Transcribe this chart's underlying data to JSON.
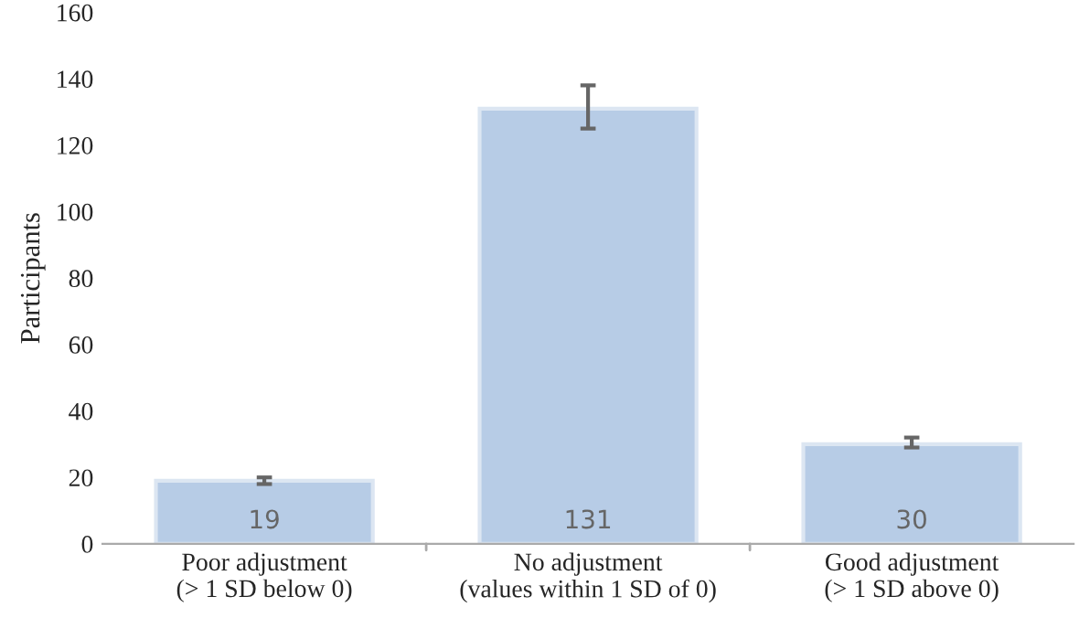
{
  "chart_data": {
    "type": "bar",
    "ylabel": "Participants",
    "categories": [
      "Poor adjustment\n(> 1 SD below 0)",
      "No adjustment\n(values within 1 SD of 0)",
      "Good adjustment\n(> 1 SD above 0)"
    ],
    "values": [
      19,
      131,
      30
    ],
    "errors": [
      [
        18,
        20
      ],
      [
        125,
        138
      ],
      [
        29,
        32
      ]
    ],
    "color": "#b7cce6",
    "ylim": [
      0,
      160
    ],
    "yticks": [
      0,
      20,
      40,
      60,
      80,
      100,
      120,
      140,
      160
    ],
    "data_labels": true,
    "grid": false,
    "legend": false
  }
}
